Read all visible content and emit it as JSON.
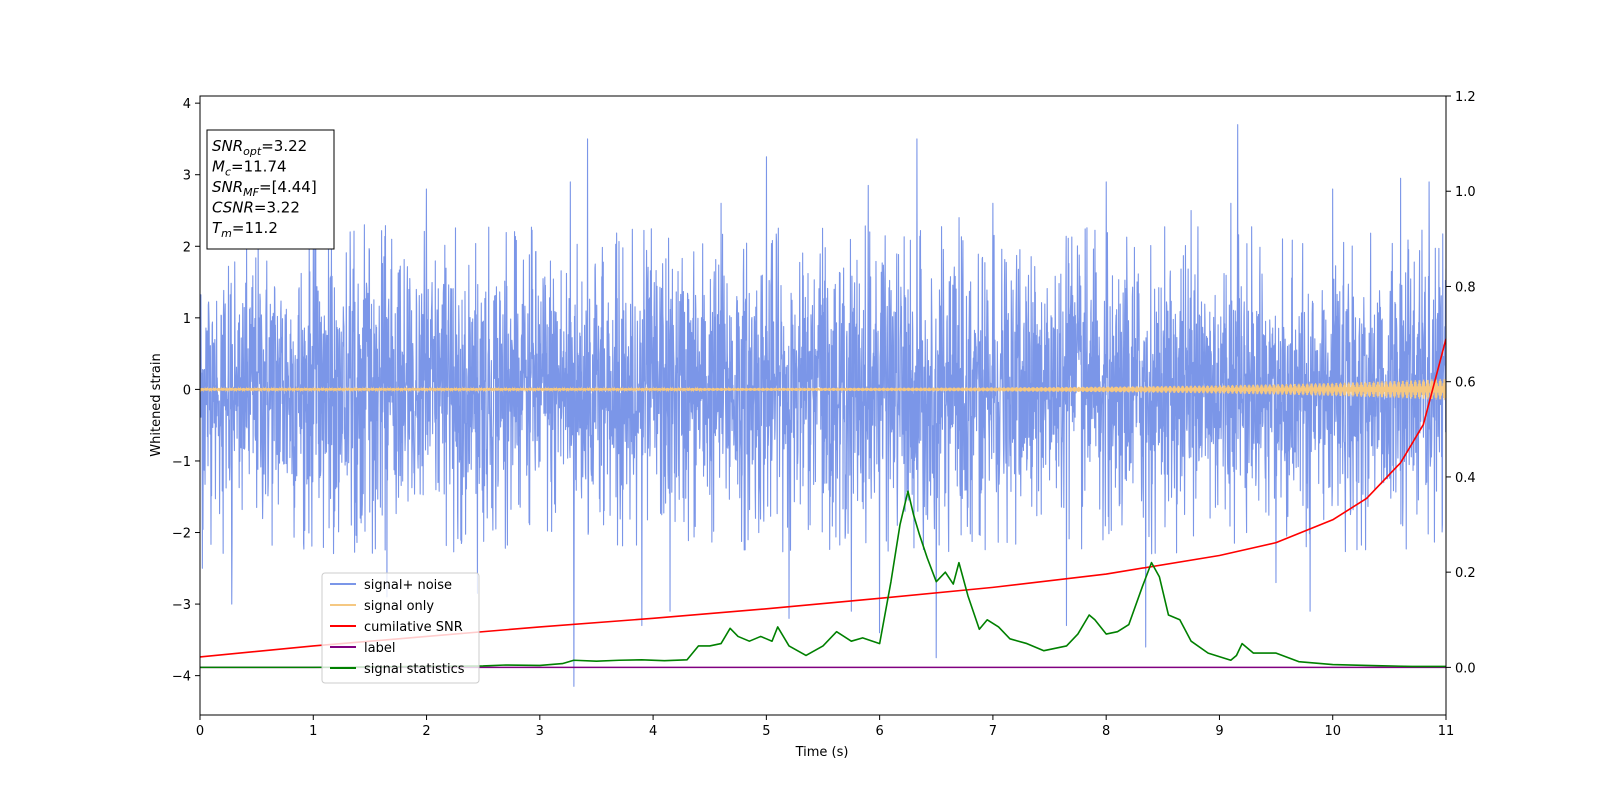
{
  "chart_data": {
    "type": "line",
    "xlabel": "Time (s)",
    "ylabel_left": "Whitened strain",
    "ylabel_right": "",
    "xlim": [
      0,
      11
    ],
    "ylim_left": [
      -4.55,
      4.1
    ],
    "ylim_right": [
      -0.1,
      1.2
    ],
    "x_ticks": [
      0,
      1,
      2,
      3,
      4,
      5,
      6,
      7,
      8,
      9,
      10,
      11
    ],
    "y_ticks_left": [
      {
        "value": -4,
        "label": "−4"
      },
      {
        "value": -3,
        "label": "−3"
      },
      {
        "value": -2,
        "label": "−2"
      },
      {
        "value": -1,
        "label": "−1"
      },
      {
        "value": 0,
        "label": "0"
      },
      {
        "value": 1,
        "label": "1"
      },
      {
        "value": 2,
        "label": "2"
      },
      {
        "value": 3,
        "label": "3"
      },
      {
        "value": 4,
        "label": "4"
      }
    ],
    "y_ticks_right": [
      {
        "value": 0.0,
        "label": "0.0"
      },
      {
        "value": 0.2,
        "label": "0.2"
      },
      {
        "value": 0.4,
        "label": "0.4"
      },
      {
        "value": 0.6,
        "label": "0.6"
      },
      {
        "value": 0.8,
        "label": "0.8"
      },
      {
        "value": 1.0,
        "label": "1.0"
      },
      {
        "value": 1.2,
        "label": "1.2"
      }
    ],
    "legend_placement": "lower-left",
    "grid": false,
    "info_box": {
      "lines": [
        {
          "sym": "SNR",
          "sub": "opt",
          "val": "=3.22"
        },
        {
          "sym": "M",
          "sub": "c",
          "val": "=11.74"
        },
        {
          "sym": "SNR",
          "sub": "MF",
          "val": "=[4.44]"
        },
        {
          "sym": "CSNR",
          "sub": "",
          "val": "=3.22"
        },
        {
          "sym": "T",
          "sub": "m",
          "val": "=11.2"
        }
      ]
    },
    "series": [
      {
        "name": "signal+ noise",
        "axis": "left",
        "color": "#7b96e8",
        "noise_sigma": 0.95,
        "spikes": [
          {
            "x": 0.02,
            "y": -2.5
          },
          {
            "x": 0.28,
            "y": -3.0
          },
          {
            "x": 1.0,
            "y": 2.4
          },
          {
            "x": 1.45,
            "y": 2.3
          },
          {
            "x": 1.65,
            "y": -2.9
          },
          {
            "x": 2.0,
            "y": 2.8
          },
          {
            "x": 2.45,
            "y": -2.85
          },
          {
            "x": 3.27,
            "y": 2.9
          },
          {
            "x": 3.3,
            "y": -4.15
          },
          {
            "x": 3.42,
            "y": 3.5
          },
          {
            "x": 3.9,
            "y": -3.3
          },
          {
            "x": 4.15,
            "y": -3.1
          },
          {
            "x": 4.6,
            "y": 2.6
          },
          {
            "x": 5.0,
            "y": 3.25
          },
          {
            "x": 5.2,
            "y": -3.2
          },
          {
            "x": 5.75,
            "y": -3.1
          },
          {
            "x": 5.9,
            "y": 2.85
          },
          {
            "x": 6.0,
            "y": -3.4
          },
          {
            "x": 6.33,
            "y": 3.5
          },
          {
            "x": 6.5,
            "y": -3.75
          },
          {
            "x": 6.7,
            "y": 2.4
          },
          {
            "x": 7.0,
            "y": 2.6
          },
          {
            "x": 7.65,
            "y": -3.3
          },
          {
            "x": 8.0,
            "y": 2.9
          },
          {
            "x": 8.35,
            "y": -3.6
          },
          {
            "x": 8.75,
            "y": 2.5
          },
          {
            "x": 9.1,
            "y": 2.6
          },
          {
            "x": 9.16,
            "y": 3.7
          },
          {
            "x": 9.5,
            "y": -2.7
          },
          {
            "x": 9.8,
            "y": -3.1
          },
          {
            "x": 10.0,
            "y": 2.8
          },
          {
            "x": 10.6,
            "y": 2.95
          },
          {
            "x": 10.85,
            "y": 2.9
          }
        ]
      },
      {
        "name": "signal only",
        "axis": "left",
        "color": "#f5c882",
        "amplitude_start": 0.02,
        "amplitude_end": 0.15
      },
      {
        "name": "cumilative SNR",
        "axis": "right",
        "color": "#ff0000",
        "x": [
          0,
          1,
          2,
          3,
          4,
          5,
          6,
          7,
          8,
          9,
          9.5,
          10,
          10.3,
          10.6,
          10.8,
          11
        ],
        "y": [
          0.022,
          0.045,
          0.065,
          0.085,
          0.103,
          0.123,
          0.145,
          0.168,
          0.196,
          0.235,
          0.262,
          0.31,
          0.355,
          0.43,
          0.51,
          0.69
        ]
      },
      {
        "name": "label",
        "axis": "right",
        "color": "#800080",
        "x": [
          0,
          11
        ],
        "y": [
          0,
          0
        ]
      },
      {
        "name": "signal statistics",
        "axis": "right",
        "color": "#008000",
        "x": [
          0,
          0.5,
          1.0,
          1.5,
          2.0,
          2.5,
          2.7,
          3.0,
          3.2,
          3.3,
          3.5,
          3.7,
          3.9,
          4.1,
          4.3,
          4.4,
          4.5,
          4.6,
          4.68,
          4.75,
          4.85,
          4.95,
          5.0,
          5.05,
          5.1,
          5.2,
          5.35,
          5.5,
          5.62,
          5.75,
          5.85,
          6.0,
          6.1,
          6.18,
          6.25,
          6.3,
          6.35,
          6.42,
          6.5,
          6.58,
          6.65,
          6.7,
          6.78,
          6.88,
          6.95,
          7.05,
          7.15,
          7.3,
          7.45,
          7.55,
          7.65,
          7.75,
          7.85,
          7.9,
          8.0,
          8.1,
          8.2,
          8.32,
          8.4,
          8.47,
          8.55,
          8.65,
          8.75,
          8.9,
          9.1,
          9.15,
          9.2,
          9.3,
          9.5,
          9.7,
          10.0,
          10.3,
          10.7,
          11.0
        ],
        "y": [
          0,
          0,
          0,
          0.001,
          0.002,
          0.003,
          0.005,
          0.004,
          0.008,
          0.015,
          0.013,
          0.015,
          0.016,
          0.014,
          0.016,
          0.045,
          0.045,
          0.05,
          0.082,
          0.065,
          0.055,
          0.065,
          0.06,
          0.055,
          0.085,
          0.045,
          0.025,
          0.045,
          0.075,
          0.055,
          0.062,
          0.05,
          0.18,
          0.3,
          0.37,
          0.32,
          0.28,
          0.23,
          0.18,
          0.2,
          0.175,
          0.22,
          0.15,
          0.08,
          0.1,
          0.085,
          0.06,
          0.05,
          0.035,
          0.04,
          0.045,
          0.07,
          0.11,
          0.1,
          0.07,
          0.075,
          0.09,
          0.17,
          0.22,
          0.19,
          0.11,
          0.1,
          0.055,
          0.03,
          0.015,
          0.025,
          0.05,
          0.03,
          0.03,
          0.012,
          0.006,
          0.004,
          0.002,
          0.002
        ]
      }
    ]
  }
}
